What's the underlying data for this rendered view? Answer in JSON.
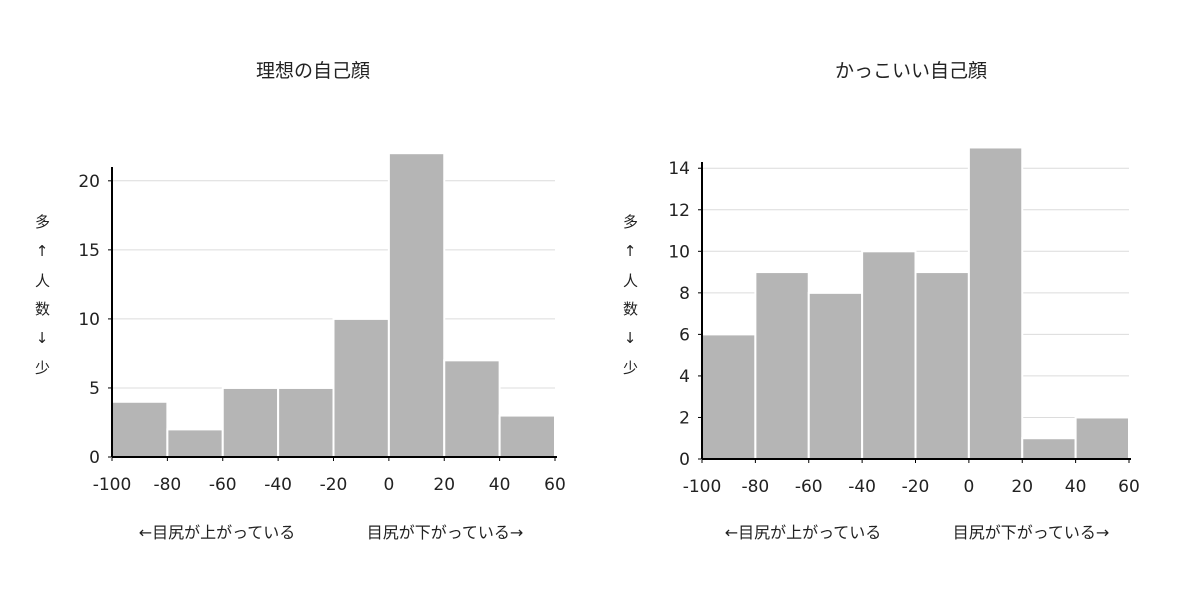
{
  "chart_data": [
    {
      "type": "histogram",
      "title": "理想の自己顔",
      "ylabel": "多↑人数↓少",
      "annotations": [
        "←目尻が上がっている",
        "目尻が下がっている→"
      ],
      "bins": [
        -100,
        -80,
        -60,
        -40,
        -20,
        0,
        20,
        40,
        60
      ],
      "values": [
        4,
        2,
        5,
        5,
        10,
        22,
        7,
        3
      ],
      "color": "#b5b5b5",
      "xlim": [
        -100,
        60
      ],
      "xticks": [
        -100,
        -80,
        -60,
        -40,
        -20,
        0,
        20,
        40,
        60
      ],
      "ylim": [
        0,
        21
      ],
      "yticks": [
        0,
        5,
        10,
        15,
        20
      ],
      "grid": true
    },
    {
      "type": "histogram",
      "title": "かっこいい自己顔",
      "ylabel": "多↑人数↓少",
      "annotations": [
        "←目尻が上がっている",
        "目尻が下がっている→"
      ],
      "bins": [
        -100,
        -80,
        -60,
        -40,
        -20,
        0,
        20,
        40,
        60
      ],
      "values": [
        6,
        9,
        8,
        10,
        9,
        15,
        1,
        2
      ],
      "color": "#b5b5b5",
      "xlim": [
        -100,
        60
      ],
      "xticks": [
        -100,
        -80,
        -60,
        -40,
        -20,
        0,
        20,
        40,
        60
      ],
      "ylim": [
        0,
        14.3
      ],
      "yticks": [
        0,
        2,
        4,
        6,
        8,
        10,
        12,
        14
      ],
      "grid": true
    }
  ]
}
